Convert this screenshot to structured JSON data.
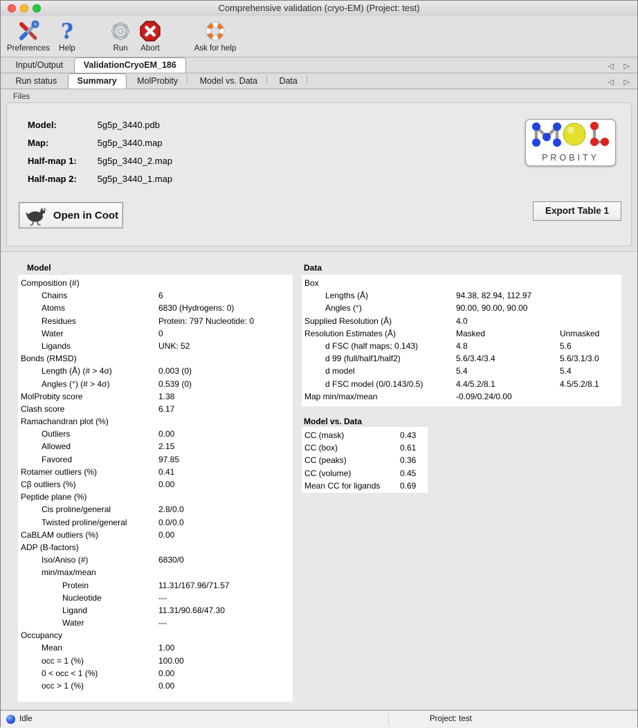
{
  "window": {
    "title": "Comprehensive validation (cryo-EM) (Project: test)"
  },
  "colors": {
    "traffic_red": "#ff5f57",
    "traffic_yellow": "#febc2e",
    "traffic_green": "#28c840",
    "abort_red": "#c8201d",
    "help_blue": "#2b6bd8",
    "lifebuoy_orange": "#e87830",
    "mol_blue": "#2244dd",
    "mol_yellow": "#e3df2b",
    "mol_red": "#dd2222",
    "status_dot_blue": "#2b50d8"
  },
  "toolbar": {
    "items": [
      {
        "label": "Preferences",
        "icon": "tools-icon"
      },
      {
        "label": "Help",
        "icon": "question-icon"
      },
      {
        "label": "Run",
        "icon": "gear-icon"
      },
      {
        "label": "Abort",
        "icon": "abort-icon"
      },
      {
        "label": "Ask for help",
        "icon": "lifebuoy-icon"
      }
    ]
  },
  "tabs": {
    "scroll_left": "◁",
    "scroll_right": "▷",
    "main": [
      {
        "label": "Input/Output",
        "selected": false
      },
      {
        "label": "ValidationCryoEM_186",
        "selected": true
      }
    ],
    "sub": [
      {
        "label": "Run status",
        "selected": false
      },
      {
        "label": "Summary",
        "selected": true
      },
      {
        "label": "MolProbity",
        "selected": false
      },
      {
        "label": "Model vs. Data",
        "selected": false
      },
      {
        "label": "Data",
        "selected": false
      }
    ]
  },
  "files": {
    "group_label": "Files",
    "rows": [
      {
        "label": "Model:",
        "value": "5g5p_3440.pdb"
      },
      {
        "label": "Map:",
        "value": "5g5p_3440.map"
      },
      {
        "label": "Half-map 1:",
        "value": "5g5p_3440_2.map"
      },
      {
        "label": "Half-map 2:",
        "value": "5g5p_3440_1.map"
      }
    ],
    "open_in_coot_label": "Open in Coot",
    "export_table_label": "Export Table 1",
    "molprobity_logo": {
      "mol": "MOL",
      "probity": "PROBITY"
    }
  },
  "model_panel": {
    "title": "Model",
    "rows": [
      {
        "label": "Composition (#)",
        "value": "",
        "indent": 0
      },
      {
        "label": "Chains",
        "value": "6",
        "indent": 1
      },
      {
        "label": "Atoms",
        "value": "6830 (Hydrogens: 0)",
        "indent": 1
      },
      {
        "label": "Residues",
        "value": "Protein: 797 Nucleotide: 0",
        "indent": 1
      },
      {
        "label": "Water",
        "value": "0",
        "indent": 1
      },
      {
        "label": "Ligands",
        "value": "UNK: 52",
        "indent": 1
      },
      {
        "label": "Bonds (RMSD)",
        "value": "",
        "indent": 0
      },
      {
        "label": "Length (Å) (# > 4σ)",
        "value": "0.003 (0)",
        "indent": 1
      },
      {
        "label": "Angles (°) (# > 4σ)",
        "value": "0.539 (0)",
        "indent": 1
      },
      {
        "label": "MolProbity score",
        "value": "1.38",
        "indent": 0
      },
      {
        "label": "Clash score",
        "value": "6.17",
        "indent": 0
      },
      {
        "label": "Ramachandran plot (%)",
        "value": "",
        "indent": 0
      },
      {
        "label": "Outliers",
        "value": "0.00",
        "indent": 1
      },
      {
        "label": "Allowed",
        "value": "2.15",
        "indent": 1
      },
      {
        "label": "Favored",
        "value": "97.85",
        "indent": 1
      },
      {
        "label": "Rotamer outliers (%)",
        "value": "0.41",
        "indent": 0
      },
      {
        "label": "Cβ outliers (%)",
        "value": "0.00",
        "indent": 0
      },
      {
        "label": "Peptide plane (%)",
        "value": "",
        "indent": 0
      },
      {
        "label": "Cis proline/general",
        "value": "2.8/0.0",
        "indent": 1
      },
      {
        "label": "Twisted proline/general",
        "value": "0.0/0.0",
        "indent": 1
      },
      {
        "label": "CaBLAM outliers (%)",
        "value": "0.00",
        "indent": 0
      },
      {
        "label": "ADP (B-factors)",
        "value": "",
        "indent": 0
      },
      {
        "label": "Iso/Aniso (#)",
        "value": "6830/0",
        "indent": 1
      },
      {
        "label": "min/max/mean",
        "value": "",
        "indent": 1
      },
      {
        "label": "Protein",
        "value": "11.31/167.96/71.57",
        "indent": 2
      },
      {
        "label": "Nucleotide",
        "value": "---",
        "indent": 2
      },
      {
        "label": "Ligand",
        "value": "11.31/90.68/47.30",
        "indent": 2
      },
      {
        "label": "Water",
        "value": "---",
        "indent": 2
      },
      {
        "label": "Occupancy",
        "value": "",
        "indent": 0
      },
      {
        "label": "Mean",
        "value": "1.00",
        "indent": 1
      },
      {
        "label": "occ = 1 (%)",
        "value": "100.00",
        "indent": 1
      },
      {
        "label": "0 < occ < 1 (%)",
        "value": "0.00",
        "indent": 1
      },
      {
        "label": "occ > 1 (%)",
        "value": "0.00",
        "indent": 1
      }
    ]
  },
  "data_panel": {
    "title": "Data",
    "rows": [
      {
        "label": "Box",
        "v1": "",
        "v2": "",
        "indent": 0
      },
      {
        "label": "Lengths (Å)",
        "v1": "94.38, 82.94, 112.97",
        "v2": "",
        "indent": 1
      },
      {
        "label": "Angles (°)",
        "v1": "90.00, 90.00, 90.00",
        "v2": "",
        "indent": 1
      },
      {
        "label": "Supplied Resolution (Å)",
        "v1": "4.0",
        "v2": "",
        "indent": 0
      },
      {
        "label": "Resolution Estimates (Å)",
        "v1": "Masked",
        "v2": "Unmasked",
        "indent": 0
      },
      {
        "label": "d FSC (half maps; 0.143)",
        "v1": "4.8",
        "v2": "5.6",
        "indent": 1
      },
      {
        "label": "d 99 (full/half1/half2)",
        "v1": "5.6/3.4/3.4",
        "v2": "5.6/3.1/3.0",
        "indent": 1
      },
      {
        "label": "d model",
        "v1": "5.4",
        "v2": "5.4",
        "indent": 1
      },
      {
        "label": "d FSC model (0/0.143/0.5)",
        "v1": "4.4/5.2/8.1",
        "v2": "4.5/5.2/8.1",
        "indent": 1
      },
      {
        "label": "Map min/max/mean",
        "v1": "-0.09/0.24/0.00",
        "v2": "",
        "indent": 0
      }
    ]
  },
  "model_vs_data_panel": {
    "title": "Model vs. Data",
    "rows": [
      {
        "label": "CC (mask)",
        "value": "0.43"
      },
      {
        "label": "CC (box)",
        "value": "0.61"
      },
      {
        "label": "CC (peaks)",
        "value": "0.36"
      },
      {
        "label": "CC (volume)",
        "value": "0.45"
      },
      {
        "label": "Mean CC for ligands",
        "value": "0.69"
      }
    ]
  },
  "status_bar": {
    "status": "Idle",
    "project": "Project: test"
  }
}
